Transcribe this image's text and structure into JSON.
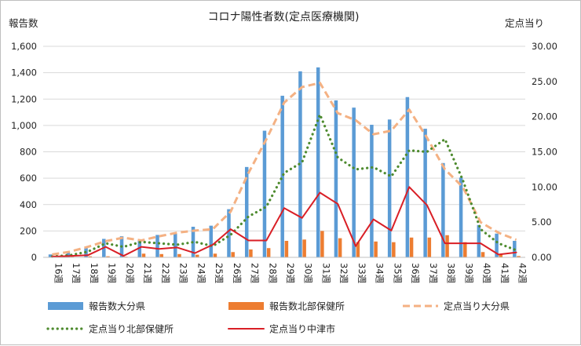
{
  "chart_data": {
    "type": "bar",
    "title": "コロナ陽性者数(定点医療機関)",
    "ylabel": "報告数",
    "y2label": "定点当り",
    "ylim": [
      0,
      1600
    ],
    "y2lim": [
      0,
      30
    ],
    "yticks": [
      "0",
      "200",
      "400",
      "600",
      "800",
      "1,000",
      "1,200",
      "1,400",
      "1,600"
    ],
    "y2ticks": [
      "0.00",
      "5.00",
      "10.00",
      "15.00",
      "20.00",
      "25.00",
      "30.00"
    ],
    "categories": [
      "16週",
      "17週",
      "18週",
      "19週",
      "20週",
      "21週",
      "22週",
      "23週",
      "24週",
      "25週",
      "26週",
      "27週",
      "28週",
      "29週",
      "30週",
      "31週",
      "32週",
      "33週",
      "34週",
      "35週",
      "36週",
      "37週",
      "38週",
      "39週",
      "40週",
      "41週",
      "42週"
    ],
    "series": [
      {
        "name": "報告数大分県",
        "kind": "bar",
        "axis": "left",
        "color": "#5b9bd5",
        "values": [
          22,
          35,
          70,
          140,
          160,
          125,
          170,
          180,
          232,
          240,
          365,
          685,
          960,
          1225,
          1410,
          1440,
          1190,
          1135,
          1005,
          1045,
          1215,
          975,
          715,
          605,
          245,
          180,
          125
        ]
      },
      {
        "name": "報告数北部保健所",
        "kind": "bar",
        "axis": "left",
        "color": "#ed7d31",
        "values": [
          3,
          5,
          8,
          8,
          5,
          28,
          25,
          25,
          20,
          28,
          40,
          60,
          70,
          125,
          135,
          200,
          145,
          115,
          120,
          115,
          150,
          150,
          168,
          115,
          40,
          20,
          10
        ]
      },
      {
        "name": "定点当り大分県",
        "kind": "line",
        "style": "dashed",
        "axis": "right",
        "color": "#f4b183",
        "values": [
          0.4,
          0.8,
          1.5,
          2.3,
          2.8,
          2.4,
          3.0,
          3.5,
          3.8,
          4.0,
          6.5,
          12.0,
          16.8,
          22.0,
          24.2,
          24.8,
          20.5,
          19.5,
          17.5,
          18.0,
          21.0,
          17.0,
          12.5,
          10.0,
          5.0,
          3.5,
          2.5
        ]
      },
      {
        "name": "定点当り北部保健所",
        "kind": "line",
        "style": "dotted",
        "axis": "right",
        "color": "#4e8b2f",
        "values": [
          0.1,
          0.3,
          0.8,
          2.0,
          1.5,
          2.2,
          2.0,
          1.8,
          2.2,
          1.6,
          3.2,
          5.8,
          7.2,
          12.0,
          13.5,
          20.3,
          14.2,
          12.5,
          12.8,
          11.5,
          15.2,
          15.0,
          16.8,
          11.0,
          4.0,
          2.0,
          1.0
        ]
      },
      {
        "name": "定点当り中津市",
        "kind": "line",
        "style": "solid",
        "axis": "right",
        "color": "#d91f26",
        "values": [
          0.1,
          0.2,
          0.3,
          1.5,
          0.2,
          1.5,
          1.2,
          1.4,
          0.6,
          1.8,
          4.0,
          2.4,
          2.4,
          7.0,
          5.6,
          9.2,
          7.6,
          1.6,
          5.4,
          3.8,
          10.0,
          7.4,
          2.0,
          2.0,
          2.0,
          0.4,
          0.7
        ]
      }
    ]
  }
}
